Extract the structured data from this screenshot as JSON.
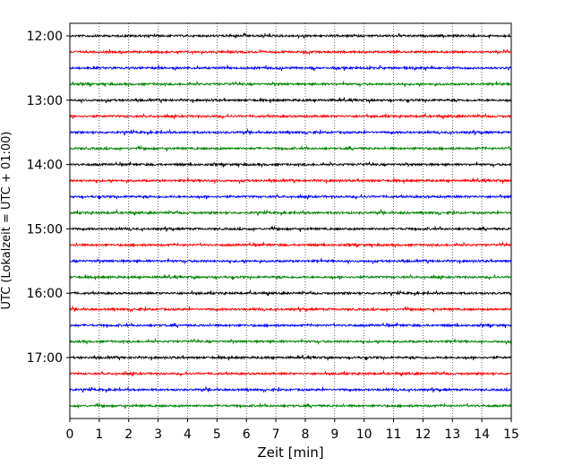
{
  "chart_data": {
    "type": "line",
    "xlabel": "Zeit  [min]",
    "ylabel": "UTC (Lokalzeit = UTC + 01:00)",
    "x_ticks": [
      "0",
      "1",
      "2",
      "3",
      "4",
      "5",
      "6",
      "7",
      "8",
      "9",
      "10",
      "11",
      "12",
      "13",
      "14",
      "15"
    ],
    "xlim": [
      0,
      15
    ],
    "y_ticks": [
      "12:00",
      "13:00",
      "14:00",
      "15:00",
      "16:00",
      "17:00"
    ],
    "grid": "vertical dotted at each minute",
    "trace_interval_minutes": 15,
    "trace_colors": [
      "#000000",
      "#ff0000",
      "#0000ff",
      "#008000"
    ],
    "series": [
      {
        "start": "12:00"
      },
      {
        "start": "12:15"
      },
      {
        "start": "12:30"
      },
      {
        "start": "12:45"
      },
      {
        "start": "13:00"
      },
      {
        "start": "13:15"
      },
      {
        "start": "13:30"
      },
      {
        "start": "13:45"
      },
      {
        "start": "14:00"
      },
      {
        "start": "14:15"
      },
      {
        "start": "14:30"
      },
      {
        "start": "14:45"
      },
      {
        "start": "15:00"
      },
      {
        "start": "15:15"
      },
      {
        "start": "15:30"
      },
      {
        "start": "15:45"
      },
      {
        "start": "16:00"
      },
      {
        "start": "16:15"
      },
      {
        "start": "16:30"
      },
      {
        "start": "16:45"
      },
      {
        "start": "17:00"
      },
      {
        "start": "17:15"
      },
      {
        "start": "17:30"
      },
      {
        "start": "17:45"
      }
    ]
  }
}
